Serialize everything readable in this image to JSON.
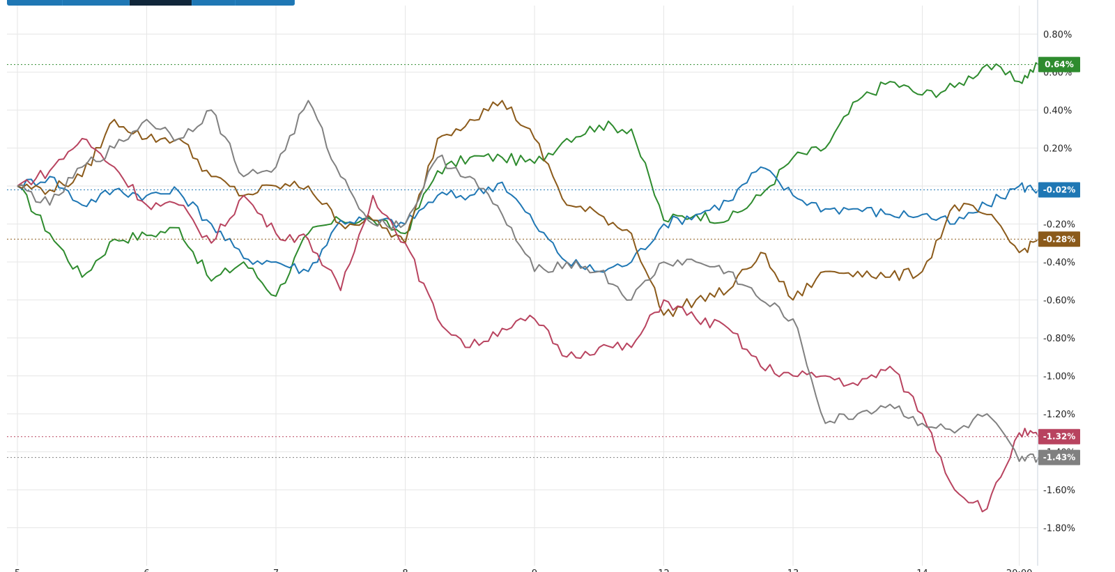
{
  "toolbar": {
    "tabs": [
      {
        "label": "",
        "active": false
      },
      {
        "label": "",
        "active": false
      },
      {
        "label": "",
        "active": true
      },
      {
        "label": "",
        "active": false
      },
      {
        "label": "",
        "active": false
      }
    ]
  },
  "chart_data": {
    "type": "line",
    "title": "",
    "xlabel": "",
    "ylabel": "",
    "x_tick_labels": [
      "5",
      "6",
      "7",
      "8",
      "9",
      "12",
      "13",
      "14",
      "20:00"
    ],
    "y_tick_labels": [
      "0.80%",
      "0.60%",
      "0.40%",
      "0.20%",
      "0.00%",
      "-0.20%",
      "-0.40%",
      "-0.60%",
      "-0.80%",
      "-1.00%",
      "-1.20%",
      "-1.40%",
      "-1.60%",
      "-1.80%"
    ],
    "y_unit": "%",
    "ylim": [
      -1.9,
      0.95
    ],
    "grid": true,
    "x": [
      0,
      0.25,
      0.5,
      0.75,
      1,
      1.25,
      1.5,
      1.75,
      2,
      2.25,
      2.5,
      2.75,
      3,
      3.25,
      3.5,
      3.75,
      4,
      4.25,
      4.5,
      4.75,
      5,
      5.25,
      5.5,
      5.75,
      6,
      6.25,
      6.5,
      6.75,
      7,
      7.25,
      7.5,
      7.75,
      7.9
    ],
    "series": [
      {
        "name": "",
        "color": "#2e8b2e",
        "last_label": "0.64%",
        "values": [
          0.0,
          -0.25,
          -0.48,
          -0.28,
          -0.26,
          -0.22,
          -0.5,
          -0.4,
          -0.58,
          -0.25,
          -0.18,
          -0.18,
          -0.25,
          0.08,
          0.15,
          0.15,
          0.12,
          0.25,
          0.32,
          0.3,
          -0.18,
          -0.15,
          -0.18,
          -0.05,
          0.15,
          0.2,
          0.45,
          0.55,
          0.48,
          0.52,
          0.64,
          0.55,
          0.64
        ]
      },
      {
        "name": "",
        "color": "#1f77b4",
        "values": [
          0.0,
          0.05,
          -0.1,
          -0.02,
          -0.05,
          -0.03,
          -0.2,
          -0.38,
          -0.4,
          -0.45,
          -0.18,
          -0.18,
          -0.2,
          -0.05,
          -0.05,
          0.02,
          -0.2,
          -0.4,
          -0.45,
          -0.4,
          -0.2,
          -0.15,
          -0.08,
          0.1,
          -0.05,
          -0.12,
          -0.12,
          -0.15,
          -0.15,
          -0.2,
          -0.1,
          0.0,
          -0.02
        ]
      },
      {
        "name": "",
        "color": "#8b5a1a",
        "values": [
          0.0,
          -0.02,
          0.05,
          0.35,
          0.25,
          0.25,
          0.05,
          -0.05,
          0.0,
          0.0,
          -0.2,
          -0.18,
          -0.3,
          0.25,
          0.35,
          0.45,
          0.25,
          -0.1,
          -0.15,
          -0.25,
          -0.68,
          -0.6,
          -0.55,
          -0.35,
          -0.6,
          -0.45,
          -0.45,
          -0.48,
          -0.45,
          -0.1,
          -0.15,
          -0.35,
          -0.28
        ]
      },
      {
        "name": "",
        "color": "#b8435f",
        "last_label": "-1.32%",
        "values": [
          0.0,
          0.08,
          0.25,
          0.1,
          -0.1,
          -0.1,
          -0.3,
          -0.05,
          -0.25,
          -0.28,
          -0.55,
          -0.05,
          -0.3,
          -0.7,
          -0.85,
          -0.75,
          -0.7,
          -0.9,
          -0.85,
          -0.85,
          -0.6,
          -0.7,
          -0.75,
          -0.95,
          -1.0,
          -1.0,
          -1.05,
          -0.95,
          -1.2,
          -1.6,
          -1.7,
          -1.3,
          -1.32
        ]
      },
      {
        "name": "",
        "color": "#808080",
        "last_label": "-1.43%",
        "values": [
          0.0,
          -0.1,
          0.1,
          0.2,
          0.35,
          0.25,
          0.4,
          0.05,
          0.1,
          0.45,
          0.05,
          -0.2,
          -0.2,
          0.15,
          0.05,
          -0.15,
          -0.45,
          -0.4,
          -0.45,
          -0.6,
          -0.4,
          -0.4,
          -0.45,
          -0.6,
          -0.7,
          -1.25,
          -1.2,
          -1.15,
          -1.25,
          -1.3,
          -1.2,
          -1.45,
          -1.43
        ]
      }
    ],
    "badges": [
      {
        "text": "0.64%",
        "value": 0.64,
        "color": "#2e8b2e"
      },
      {
        "text": "-0.02%",
        "value": -0.02,
        "color": "#1f77b4"
      },
      {
        "text": "-0.28%",
        "value": -0.28,
        "color": "#8b5a1a"
      },
      {
        "text": "-1.32%",
        "value": -1.32,
        "color": "#b8435f"
      },
      {
        "text": "-1.43%",
        "value": -1.43,
        "color": "#808080"
      }
    ]
  }
}
